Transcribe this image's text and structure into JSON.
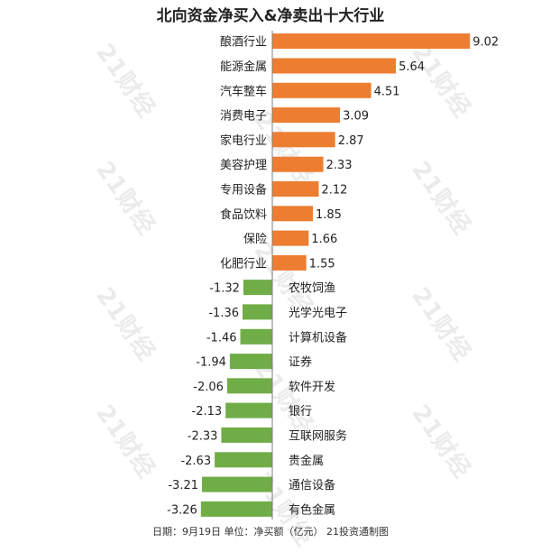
{
  "chart_data": {
    "type": "bar",
    "orientation": "horizontal",
    "title": "北向资金净买入&净卖出十大行业",
    "categories": [
      "酿酒行业",
      "能源金属",
      "汽车整车",
      "消费电子",
      "家电行业",
      "美容护理",
      "专用设备",
      "食品饮料",
      "保险",
      "化肥行业",
      "农牧饲渔",
      "光学光电子",
      "计算机设备",
      "证券",
      "软件开发",
      "银行",
      "互联网服务",
      "贵金属",
      "通信设备",
      "有色金属"
    ],
    "values": [
      9.02,
      5.64,
      4.51,
      3.09,
      2.87,
      2.33,
      2.12,
      1.85,
      1.66,
      1.55,
      -1.32,
      -1.36,
      -1.46,
      -1.94,
      -2.06,
      -2.13,
      -2.33,
      -2.63,
      -3.21,
      -3.26
    ],
    "value_labels": [
      "9.02",
      "5.64",
      "4.51",
      "3.09",
      "2.87",
      "2.33",
      "2.12",
      "1.85",
      "1.66",
      "1.55",
      "-1.32",
      "-1.36",
      "-1.46",
      "-1.94",
      "-2.06",
      "-2.13",
      "-2.33",
      "-2.63",
      "-3.21",
      "-3.26"
    ],
    "xlim": [
      -3.26,
      9.02
    ],
    "grid": false,
    "legend": "none",
    "colors": {
      "positive": "#ED7D31",
      "negative": "#70AD47",
      "axis": "#7f7f7f"
    }
  },
  "footer": "日期：9月19日 单位：净买额（亿元） 21投资通制图",
  "watermark": {
    "text": "21财经"
  }
}
